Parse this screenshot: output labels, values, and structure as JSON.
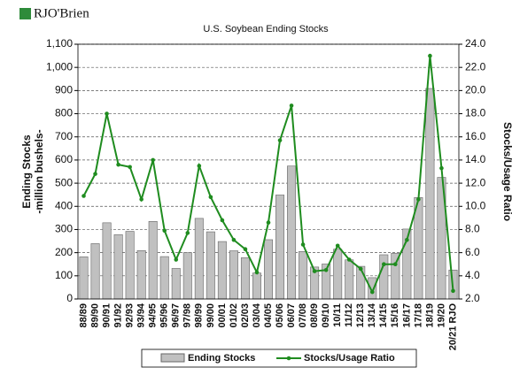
{
  "logo": "RJO'Brien",
  "chart_data": {
    "type": "bar",
    "title": "U.S. Soybean Ending Stocks",
    "ylabel": [
      "Ending Stocks",
      "-million bushels-"
    ],
    "y2label": "Stocks/Usage Ratio",
    "categories": [
      "88/89",
      "89/90",
      "90/91",
      "91/92",
      "92/93",
      "93/94",
      "94/95",
      "95/96",
      "96/97",
      "97/98",
      "98/99",
      "99/00",
      "00/01",
      "01/02",
      "02/03",
      "03/04",
      "04/05",
      "05/06",
      "06/07",
      "07/08",
      "08/09",
      "09/10",
      "10/11",
      "11/12",
      "12/13",
      "13/14",
      "14/15",
      "15/16",
      "16/17",
      "17/18",
      "18/19",
      "19/20",
      "20/21 RJO"
    ],
    "series": [
      {
        "name": "Ending Stocks",
        "type": "bar",
        "color": "#c0c0c0",
        "values": [
          182,
          239,
          329,
          278,
          292,
          209,
          335,
          183,
          132,
          200,
          348,
          290,
          248,
          208,
          178,
          112,
          256,
          449,
          574,
          205,
          138,
          151,
          215,
          169,
          141,
          92,
          191,
          197,
          302,
          438,
          909,
          525,
          125
        ]
      },
      {
        "name": "Stocks/Usage Ratio",
        "type": "line",
        "axis": "y2",
        "color": "#1f8c1f",
        "values": [
          10.9,
          12.8,
          18.0,
          13.6,
          13.4,
          10.6,
          14.0,
          7.9,
          5.4,
          7.7,
          13.5,
          10.8,
          8.8,
          7.1,
          6.3,
          4.3,
          8.6,
          15.7,
          18.7,
          6.7,
          4.4,
          4.5,
          6.6,
          5.4,
          4.6,
          2.6,
          5.0,
          5.0,
          7.1,
          10.6,
          23.0,
          13.3,
          2.7
        ]
      }
    ],
    "ylim": [
      0,
      1100
    ],
    "yticks": [
      0,
      100,
      200,
      300,
      400,
      500,
      600,
      700,
      800,
      900,
      {
        "value": 1000,
        "label": "1,000"
      },
      {
        "value": 1100,
        "label": "1,100"
      }
    ],
    "y2lim": [
      2,
      24
    ],
    "y2ticks": [
      {
        "value": 2,
        "label": "2.0"
      },
      {
        "value": 4,
        "label": "4.0"
      },
      {
        "value": 6,
        "label": "6.0"
      },
      {
        "value": 8,
        "label": "8.0"
      },
      {
        "value": 10,
        "label": "10.0"
      },
      {
        "value": 12,
        "label": "12.0"
      },
      {
        "value": 14,
        "label": "14.0"
      },
      {
        "value": 16,
        "label": "16.0"
      },
      {
        "value": 18,
        "label": "18.0"
      },
      {
        "value": 20,
        "label": "20.0"
      },
      {
        "value": 22,
        "label": "22.0"
      },
      {
        "value": 24,
        "label": "24.0"
      }
    ],
    "grid": true,
    "legend": "bottom"
  }
}
